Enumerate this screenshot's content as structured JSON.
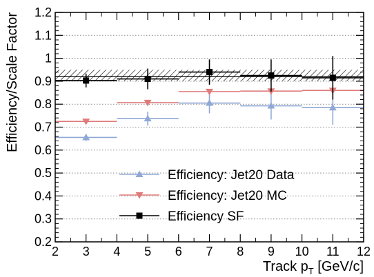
{
  "chart_data": {
    "type": "scatter",
    "xlabel": "Track p",
    "xlabel_sub": "T",
    "xlabel_unit": " [GeV/c]",
    "ylabel": "Efficiency/Scale Factor",
    "xlim": [
      2,
      12
    ],
    "ylim": [
      0.2,
      1.2
    ],
    "x_ticks": [
      2,
      3,
      4,
      5,
      6,
      7,
      8,
      9,
      10,
      11,
      12
    ],
    "y_ticks": [
      0.2,
      0.3,
      0.4,
      0.5,
      0.6,
      0.7,
      0.8,
      0.9,
      1,
      1.1,
      1.2
    ],
    "y_tick_labels": [
      "0.2",
      "0.3",
      "0.4",
      "0.5",
      "0.6",
      "0.7",
      "0.8",
      "0.9",
      "1",
      "1.1",
      "1.2"
    ],
    "grid": "horizontal dotted",
    "legend_position": "bottom-center",
    "bins": [
      {
        "xlow": 2,
        "xhigh": 4,
        "x": 3
      },
      {
        "xlow": 4,
        "xhigh": 6,
        "x": 5
      },
      {
        "xlow": 6,
        "xhigh": 8,
        "x": 7
      },
      {
        "xlow": 8,
        "xhigh": 10,
        "x": 9
      },
      {
        "xlow": 10,
        "xhigh": 12,
        "x": 11
      }
    ],
    "series": [
      {
        "name": "Efficiency: Jet20 Data",
        "marker": "triangle-up",
        "color": "#8fa8d6",
        "values": [
          0.655,
          0.737,
          0.805,
          0.793,
          0.785
        ],
        "err_low": [
          0.015,
          0.03,
          0.045,
          0.06,
          0.075
        ],
        "err_high": [
          0.015,
          0.03,
          0.045,
          0.06,
          0.075
        ]
      },
      {
        "name": "Efficiency: Jet20 MC",
        "marker": "triangle-down",
        "color": "#e07b7b",
        "values": [
          0.725,
          0.807,
          0.855,
          0.857,
          0.86
        ],
        "err_low": [
          0.005,
          0.006,
          0.006,
          0.006,
          0.006
        ],
        "err_high": [
          0.005,
          0.006,
          0.006,
          0.006,
          0.006
        ]
      },
      {
        "name": "Efficiency SF",
        "marker": "square",
        "color": "#000000",
        "values": [
          0.903,
          0.91,
          0.94,
          0.925,
          0.915
        ],
        "err_low": [
          0.03,
          0.045,
          0.055,
          0.07,
          0.095
        ],
        "err_high": [
          0.03,
          0.045,
          0.055,
          0.07,
          0.095
        ]
      }
    ],
    "sf_band": {
      "low": 0.9,
      "high": 0.95,
      "line": 0.92,
      "pattern": "hatched"
    }
  }
}
